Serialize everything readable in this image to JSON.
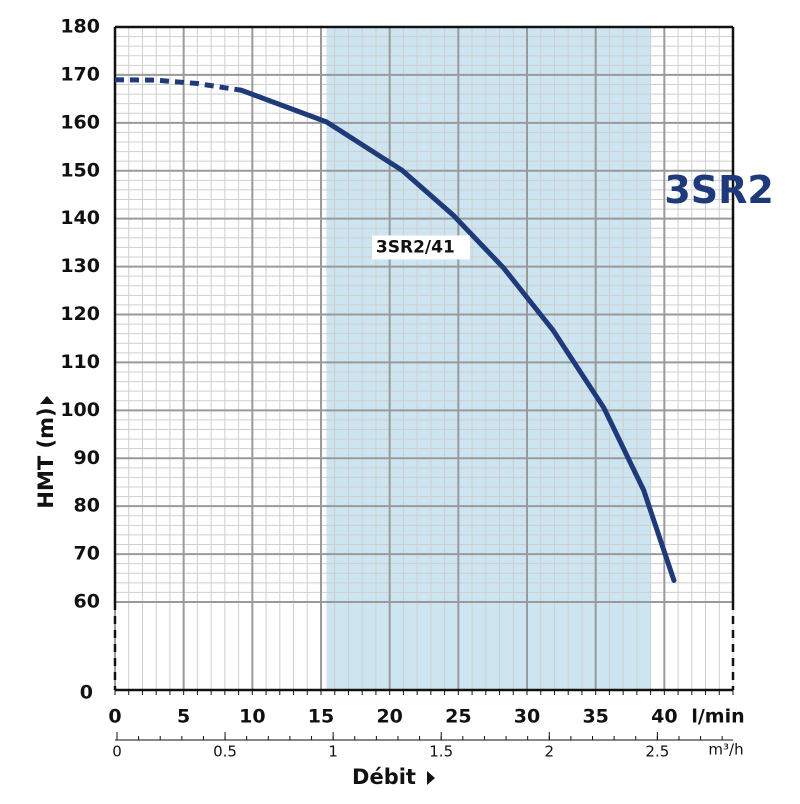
{
  "chart_data": {
    "type": "line",
    "y_label": "HMT  (m)",
    "x_label": "Débit",
    "x_unit": "l/min",
    "x2_unit": "m³/h",
    "xlim": [
      0,
      45
    ],
    "xticks": [
      0,
      5,
      10,
      15,
      20,
      25,
      30,
      35,
      40
    ],
    "x_minor_step": 1,
    "x2lim": [
      0,
      2.85
    ],
    "x2ticks": [
      0,
      0.5,
      1,
      1.5,
      2,
      2.5
    ],
    "x2_minor_step": 0.1,
    "ylim": [
      60,
      180
    ],
    "yticks": [
      60,
      70,
      80,
      90,
      100,
      110,
      120,
      130,
      140,
      150,
      160,
      170,
      180
    ],
    "y_minor_step": 2,
    "y_break_tick": 0,
    "grid": true,
    "band": {
      "xrange": [
        15.4,
        39
      ],
      "color": "#cce5f0"
    },
    "series": [
      {
        "color": "#1f3a7a",
        "dashed": true,
        "x": [
          0,
          3,
          6,
          9.2
        ],
        "values": [
          169,
          168.9,
          168.2,
          166.8
        ]
      },
      {
        "color": "#1f3a7a",
        "dashed": false,
        "x": [
          9.2,
          15.4,
          20.9,
          24.6,
          28.3,
          31.9,
          35.6,
          38.5,
          40.7
        ],
        "values": [
          166.8,
          160.2,
          150.1,
          140.8,
          129.7,
          116.7,
          100.5,
          83.3,
          64.5
        ]
      }
    ],
    "annotations": [
      {
        "text": "3SR2/41",
        "x": 19,
        "y": 134
      },
      {
        "text": "3SR2",
        "x": 40,
        "y": 145.5
      }
    ]
  }
}
